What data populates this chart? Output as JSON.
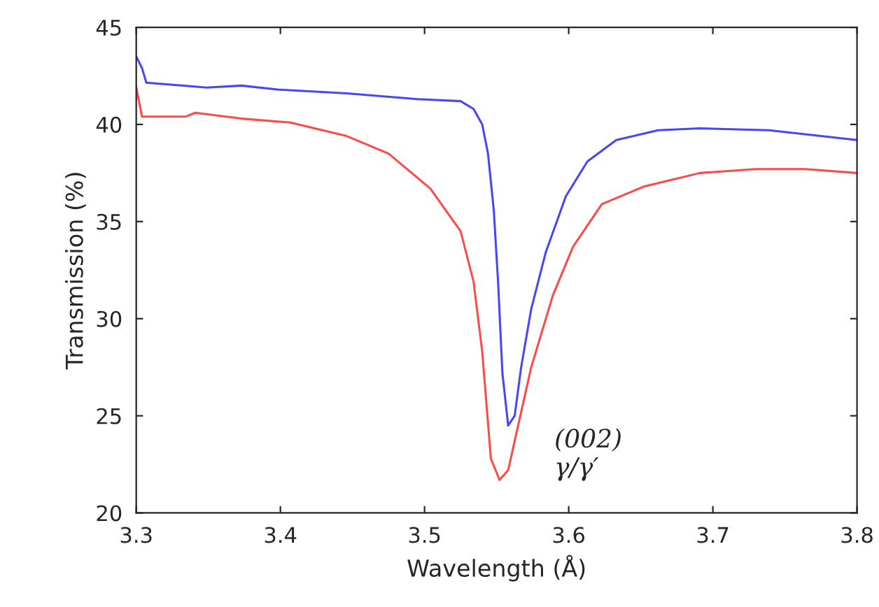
{
  "chart_data": {
    "type": "line",
    "xlabel": "Wavelength (Å)",
    "ylabel": "Transmission (%)",
    "xlim": [
      3.3,
      3.8
    ],
    "xticks": [
      3.3,
      3.4,
      3.5,
      3.6,
      3.7,
      3.8
    ],
    "ylim": [
      20,
      45
    ],
    "yticks": [
      20,
      25,
      30,
      35,
      40,
      45
    ],
    "grid": false,
    "series": [
      {
        "color": "#4646ff",
        "x": [
          3.3,
          3.304,
          3.307,
          3.349,
          3.373,
          3.398,
          3.446,
          3.495,
          3.525,
          3.534,
          3.54,
          3.544,
          3.548,
          3.551,
          3.554,
          3.558,
          3.5625,
          3.567,
          3.574,
          3.584,
          3.598,
          3.613,
          3.633,
          3.662,
          3.691,
          3.739,
          3.8
        ],
        "values": [
          43.5,
          42.9,
          42.15,
          41.9,
          42.0,
          41.8,
          41.6,
          41.3,
          41.2,
          40.8,
          40.0,
          38.5,
          35.6,
          31.9,
          27.2,
          24.5,
          25.0,
          27.5,
          30.5,
          33.4,
          36.3,
          38.1,
          39.2,
          39.7,
          39.8,
          39.7,
          39.2
        ]
      },
      {
        "color": "#ff4a4a",
        "x": [
          3.3,
          3.304,
          3.334,
          3.341,
          3.373,
          3.407,
          3.446,
          3.475,
          3.504,
          3.525,
          3.534,
          3.54,
          3.546,
          3.552,
          3.558,
          3.564,
          3.574,
          3.589,
          3.603,
          3.623,
          3.652,
          3.691,
          3.73,
          3.764,
          3.8
        ],
        "values": [
          41.9,
          40.4,
          40.4,
          40.6,
          40.3,
          40.1,
          39.4,
          38.5,
          36.7,
          34.5,
          31.9,
          28.3,
          22.8,
          21.7,
          22.2,
          24.2,
          27.5,
          31.2,
          33.7,
          35.9,
          36.8,
          37.5,
          37.7,
          37.7,
          37.5
        ]
      }
    ],
    "annotations": [
      "(002)\nγ/γ′"
    ]
  }
}
